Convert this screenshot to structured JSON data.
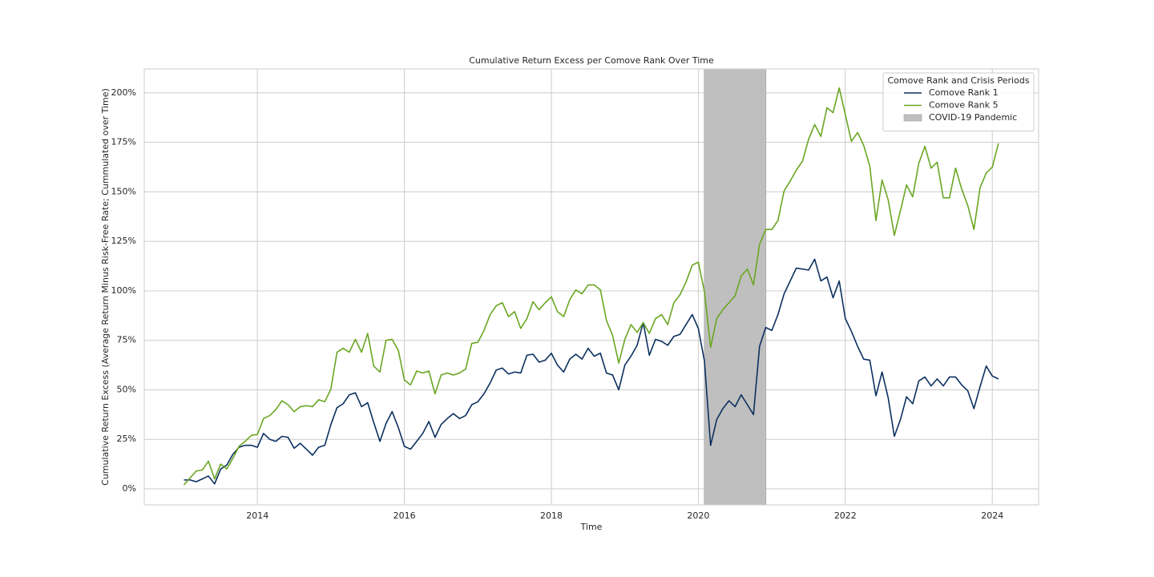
{
  "chart_data": {
    "type": "line",
    "title": "Cumulative Return Excess per Comove Rank Over Time",
    "x_label": "Time",
    "y_label": "Cumulative Return Excess (Average Return Minus Risk-Free Rate; Cummulated over Time)",
    "legend_title": "Comove Rank and Crisis Periods",
    "legend_loc": "upper right",
    "grid": true,
    "xlim": [
      2012.46,
      2024.63
    ],
    "ylim": [
      -8.1,
      212.1
    ],
    "xticks": [
      2014,
      2016,
      2018,
      2020,
      2022,
      2024
    ],
    "yticks": [
      {
        "value": 0,
        "label": "0%"
      },
      {
        "value": 25,
        "label": "25%"
      },
      {
        "value": 50,
        "label": "50%"
      },
      {
        "value": 75,
        "label": "75%"
      },
      {
        "value": 100,
        "label": "100%"
      },
      {
        "value": 125,
        "label": "125%"
      },
      {
        "value": 150,
        "label": "150%"
      },
      {
        "value": 175,
        "label": "175%"
      },
      {
        "value": 200,
        "label": "200%"
      }
    ],
    "x": [
      2013,
      2013.083,
      2013.167,
      2013.25,
      2013.333,
      2013.417,
      2013.5,
      2013.583,
      2013.667,
      2013.75,
      2013.833,
      2013.917,
      2014,
      2014.083,
      2014.167,
      2014.25,
      2014.333,
      2014.417,
      2014.5,
      2014.583,
      2014.667,
      2014.75,
      2014.833,
      2014.917,
      2015,
      2015.083,
      2015.167,
      2015.25,
      2015.333,
      2015.417,
      2015.5,
      2015.583,
      2015.667,
      2015.75,
      2015.833,
      2015.917,
      2016,
      2016.083,
      2016.167,
      2016.25,
      2016.333,
      2016.417,
      2016.5,
      2016.583,
      2016.667,
      2016.75,
      2016.833,
      2016.917,
      2017,
      2017.083,
      2017.167,
      2017.25,
      2017.333,
      2017.417,
      2017.5,
      2017.583,
      2017.667,
      2017.75,
      2017.833,
      2017.917,
      2018,
      2018.083,
      2018.167,
      2018.25,
      2018.333,
      2018.417,
      2018.5,
      2018.583,
      2018.667,
      2018.75,
      2018.833,
      2018.917,
      2019,
      2019.083,
      2019.167,
      2019.25,
      2019.333,
      2019.417,
      2019.5,
      2019.583,
      2019.667,
      2019.75,
      2019.833,
      2019.917,
      2020,
      2020.083,
      2020.167,
      2020.25,
      2020.333,
      2020.417,
      2020.5,
      2020.583,
      2020.667,
      2020.75,
      2020.833,
      2020.917,
      2021,
      2021.083,
      2021.167,
      2021.25,
      2021.333,
      2021.417,
      2021.5,
      2021.583,
      2021.667,
      2021.75,
      2021.833,
      2021.917,
      2022,
      2022.083,
      2022.167,
      2022.25,
      2022.333,
      2022.417,
      2022.5,
      2022.583,
      2022.667,
      2022.75,
      2022.833,
      2022.917,
      2023,
      2023.083,
      2023.167,
      2023.25,
      2023.333,
      2023.417,
      2023.5,
      2023.583,
      2023.667,
      2023.75,
      2023.833,
      2023.917,
      2024,
      2024.083
    ],
    "series": [
      {
        "name": "Comove Rank 1",
        "color": "#0b3060",
        "values": [
          4.5,
          4.5,
          3.6,
          5,
          6.5,
          2.5,
          10,
          12,
          17.5,
          21,
          22,
          22,
          21,
          28,
          25,
          24,
          26.5,
          26,
          20.5,
          23,
          20,
          17,
          21,
          22,
          32.5,
          41,
          43,
          47.5,
          48.5,
          41.5,
          43.5,
          33.5,
          24,
          33,
          39,
          31,
          21.5,
          20,
          24,
          28,
          34,
          26,
          32.5,
          35.5,
          38,
          35.5,
          37,
          42.5,
          44,
          48,
          53.5,
          60,
          61,
          58,
          59,
          58.5,
          67.5,
          68,
          64,
          65,
          68.5,
          62.5,
          59,
          65.5,
          68,
          65.5,
          71,
          67,
          68.5,
          58.5,
          57.5,
          50,
          62.5,
          67,
          72.5,
          84,
          67.5,
          75.5,
          74.5,
          72.5,
          77,
          78,
          83,
          88,
          81,
          64.5,
          22,
          35,
          40.5,
          44.5,
          41.5,
          47.5,
          42.5,
          37.5,
          72,
          81.5,
          80,
          88,
          98.5,
          105,
          111.5,
          111,
          110.5,
          116,
          105,
          107,
          96.5,
          105,
          86,
          79.5,
          72,
          65.5,
          65,
          47,
          59,
          46,
          26.5,
          35,
          46.5,
          43,
          54.5,
          56.5,
          52,
          55.5,
          52,
          56.5,
          56.5,
          52.5,
          49.5,
          40.5,
          51.5,
          62,
          57,
          55.5
        ]
      },
      {
        "name": "Comove Rank 5",
        "color": "#6aa622",
        "values": [
          2,
          5.5,
          9,
          9.5,
          14,
          5,
          12.5,
          10,
          15.5,
          21.5,
          24,
          27,
          27.5,
          35.5,
          37,
          40,
          44.5,
          42.5,
          39,
          41.5,
          42,
          41.5,
          45,
          44,
          50.5,
          69,
          71,
          69,
          75.5,
          69,
          78.5,
          62,
          59,
          75,
          75.5,
          70,
          55,
          52.5,
          59.5,
          58.5,
          59.5,
          48,
          57.5,
          58.5,
          57.5,
          58.5,
          60.5,
          73.5,
          74,
          80,
          88,
          92.5,
          94,
          87,
          89.5,
          81,
          86,
          94.5,
          90.5,
          94,
          97,
          89.5,
          87,
          95.5,
          100.5,
          98.5,
          103,
          103,
          100.5,
          85,
          77.5,
          63.5,
          75.5,
          83,
          79,
          84,
          78.5,
          86,
          88,
          83,
          94,
          98,
          104.5,
          113,
          114.5,
          99.5,
          71.5,
          86,
          90.5,
          94,
          97.5,
          107.5,
          111,
          103,
          123.5,
          131,
          131,
          135.5,
          150.5,
          155.5,
          161,
          165.5,
          176.5,
          184,
          178,
          192.5,
          190,
          202.5,
          189,
          175.5,
          180,
          173.5,
          163,
          135.5,
          156,
          146,
          128,
          140.5,
          153.5,
          147.5,
          164.5,
          173,
          162,
          165,
          147,
          147,
          162,
          151.5,
          143,
          131,
          152,
          159.5,
          162.5,
          174.5
        ]
      }
    ],
    "spans": [
      {
        "name": "COVID-19 Pandemic",
        "start": 2020.08,
        "end": 2020.92,
        "color": "#bfbfbf"
      }
    ]
  }
}
